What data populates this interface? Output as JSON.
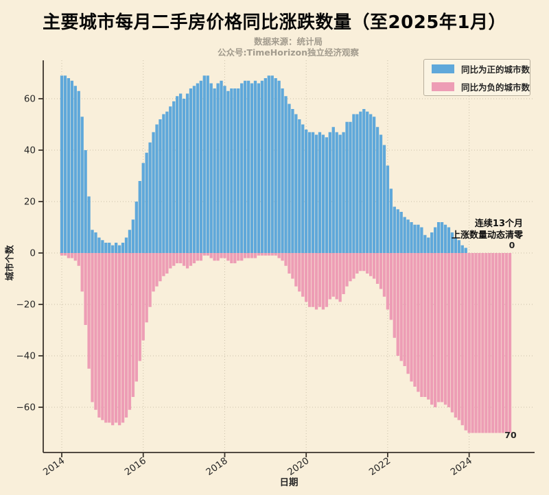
{
  "header": {
    "subtitle_source": "数据来源：统计局",
    "subtitle_wechat": "公众号:TimeHorizon独立经济观察"
  },
  "legend": {
    "items": [
      {
        "label": "同比为正的城市数",
        "color": "#5fa8da"
      },
      {
        "label": "同比为负的城市数",
        "color": "#ed9db5"
      }
    ]
  },
  "annotations": {
    "note_lines": [
      "连续13个月",
      "上涨数量动态清零"
    ],
    "end_positive_value": "0",
    "end_negative_value": "70"
  },
  "colors": {
    "background": "#f9efda",
    "positive_bar": "#5fa8da",
    "negative_bar": "#ed9db5",
    "spine": "#3a332b",
    "grid": "#c9bfa8",
    "tick_label": "#262626"
  },
  "chart_data": {
    "type": "bar",
    "title": "主要城市每月二手房价格同比涨跌数量（至2025年1月）",
    "xlabel": "日期",
    "ylabel": "城市个数",
    "x_start": "2014-01",
    "x_end": "2025-01",
    "x_freq": "monthly",
    "x_ticks": [
      2014,
      2016,
      2018,
      2020,
      2022,
      2024
    ],
    "y_ticks": [
      60,
      40,
      20,
      0,
      -20,
      -40,
      -60
    ],
    "ylim": [
      -77,
      75
    ],
    "grid": "dotted",
    "legend_position": "upper right",
    "series": [
      {
        "name": "同比为正的城市数",
        "color": "#5fa8da",
        "values": [
          69,
          69,
          68,
          67,
          65,
          63,
          53,
          40,
          22,
          9,
          8,
          6,
          5,
          4,
          4,
          3,
          4,
          3,
          4,
          6,
          9,
          13,
          20,
          28,
          35,
          39,
          43,
          47,
          50,
          52,
          54,
          55,
          57,
          59,
          61,
          62,
          60,
          62,
          64,
          65,
          66,
          67,
          69,
          69,
          66,
          64,
          66,
          67,
          65,
          63,
          64,
          64,
          64,
          66,
          67,
          67,
          66,
          67,
          66,
          67,
          68,
          69,
          69,
          68,
          67,
          64,
          61,
          58,
          56,
          54,
          52,
          50,
          48,
          47,
          47,
          46,
          47,
          46,
          45,
          47,
          49,
          47,
          46,
          47,
          51,
          51,
          54,
          54,
          55,
          56,
          55,
          54,
          53,
          49,
          46,
          42,
          34,
          25,
          18,
          17,
          16,
          14,
          13,
          12,
          11,
          11,
          10,
          7,
          6,
          8,
          10,
          12,
          12,
          11,
          10,
          8,
          6,
          5,
          3,
          2,
          0,
          0,
          0,
          0,
          0,
          0,
          0,
          0,
          0,
          0,
          0,
          0,
          0
        ]
      },
      {
        "name": "同比为负的城市数",
        "color": "#ed9db5",
        "values": [
          -1,
          -1,
          -2,
          -2,
          -3,
          -5,
          -15,
          -28,
          -45,
          -58,
          -61,
          -64,
          -65,
          -66,
          -66,
          -67,
          -66,
          -67,
          -66,
          -64,
          -61,
          -56,
          -50,
          -42,
          -34,
          -27,
          -21,
          -15,
          -13,
          -11,
          -9,
          -8,
          -6,
          -5,
          -4,
          -4,
          -5,
          -6,
          -5,
          -4,
          -3,
          -3,
          -1,
          -1,
          -2,
          -3,
          -3,
          -2,
          -2,
          -3,
          -4,
          -4,
          -3,
          -3,
          -2,
          -2,
          -2,
          -2,
          -1,
          -1,
          -1,
          -1,
          -1,
          -1,
          -2,
          -3,
          -5,
          -8,
          -10,
          -13,
          -15,
          -17,
          -19,
          -21,
          -21,
          -22,
          -21,
          -22,
          -21,
          -18,
          -17,
          -18,
          -19,
          -16,
          -13,
          -11,
          -10,
          -8,
          -7,
          -7,
          -8,
          -9,
          -10,
          -12,
          -14,
          -17,
          -22,
          -26,
          -33,
          -40,
          -42,
          -44,
          -47,
          -50,
          -52,
          -54,
          -56,
          -56,
          -57,
          -59,
          -60,
          -58,
          -58,
          -59,
          -60,
          -62,
          -64,
          -65,
          -67,
          -69,
          -70,
          -70,
          -70,
          -70,
          -70,
          -70,
          -70,
          -70,
          -70,
          -70,
          -70,
          -70,
          -70
        ]
      }
    ]
  }
}
